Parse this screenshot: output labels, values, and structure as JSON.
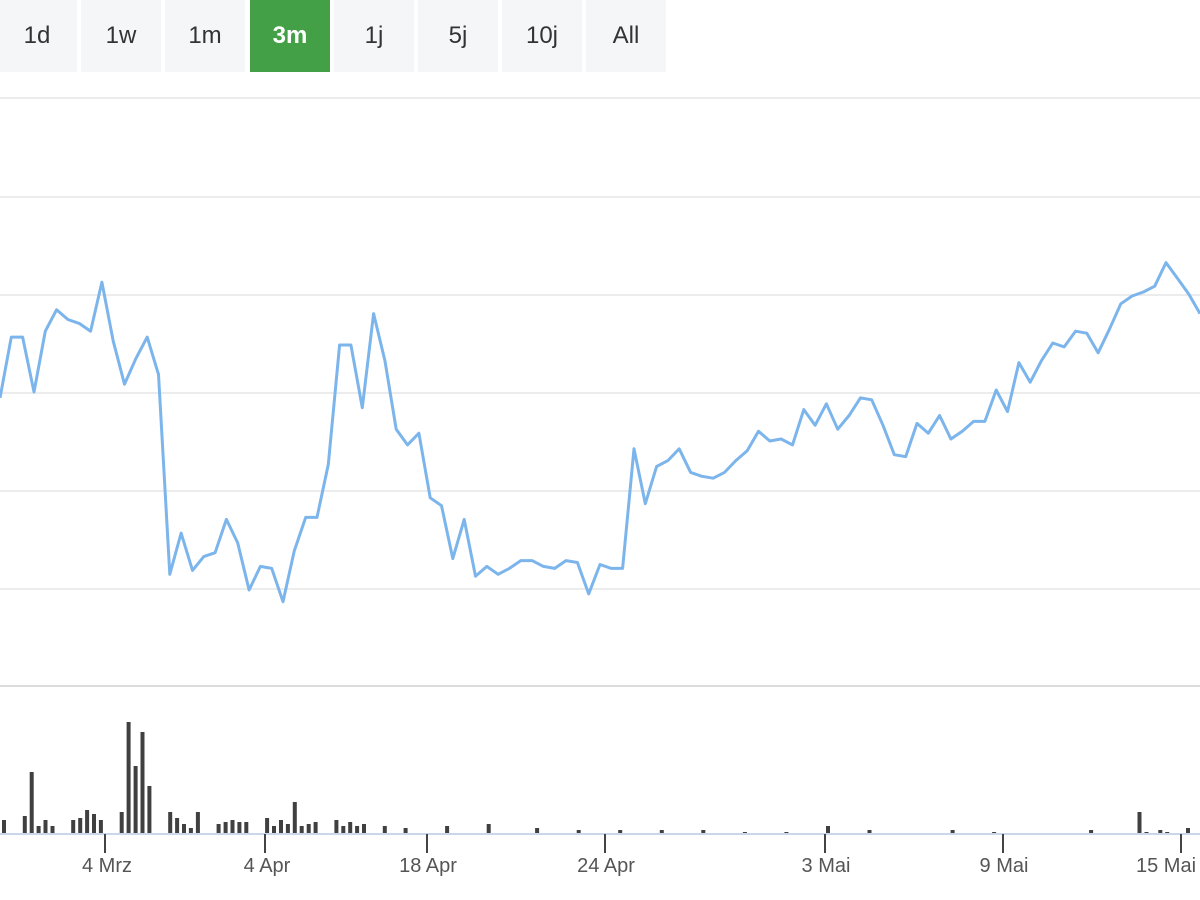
{
  "range_buttons": [
    {
      "label": "1d",
      "active": false
    },
    {
      "label": "1w",
      "active": false
    },
    {
      "label": "1m",
      "active": false
    },
    {
      "label": "3m",
      "active": true
    },
    {
      "label": "1j",
      "active": false
    },
    {
      "label": "5j",
      "active": false
    },
    {
      "label": "10j",
      "active": false
    },
    {
      "label": "All",
      "active": false
    }
  ],
  "colors": {
    "line": "#7cb5ec",
    "volume": "#404040",
    "grid": "#e6e6e6",
    "active_button": "#43a047",
    "button": "#f5f6f7"
  },
  "chart_data": {
    "type": "line",
    "title": "",
    "xlabel": "",
    "ylabel": "",
    "grid": true,
    "y_tick_labels_shown": false,
    "x_tick_labels": [
      "4 Mrz",
      "4 Apr",
      "18 Apr",
      "24 Apr",
      "3 Mai",
      "9 Mai",
      "15 Mai"
    ],
    "ylim": [
      0,
      6
    ],
    "series": [
      {
        "values": [
          2.94,
          3.56,
          3.56,
          3.0,
          3.62,
          3.84,
          3.74,
          3.7,
          3.62,
          4.12,
          3.52,
          3.08,
          3.34,
          3.56,
          3.18,
          1.14,
          1.56,
          1.18,
          1.32,
          1.36,
          1.7,
          1.46,
          0.98,
          1.22,
          1.2,
          0.86,
          1.38,
          1.72,
          1.72,
          2.26,
          3.48,
          3.48,
          2.84,
          3.8,
          3.32,
          2.62,
          2.46,
          2.58,
          1.92,
          1.84,
          1.3,
          1.7,
          1.12,
          1.22,
          1.14,
          1.2,
          1.28,
          1.28,
          1.22,
          1.2,
          1.28,
          1.26,
          0.94,
          1.24,
          1.2,
          1.2,
          2.42,
          1.86,
          2.24,
          2.3,
          2.42,
          2.18,
          2.14,
          2.12,
          2.18,
          2.3,
          2.4,
          2.6,
          2.5,
          2.52,
          2.46,
          2.82,
          2.66,
          2.88,
          2.62,
          2.76,
          2.94,
          2.92,
          2.66,
          2.36,
          2.34,
          2.68,
          2.58,
          2.76,
          2.52,
          2.6,
          2.7,
          2.7,
          3.02,
          2.8,
          3.3,
          3.1,
          3.32,
          3.5,
          3.46,
          3.62,
          3.6,
          3.4,
          3.64,
          3.9,
          3.98,
          4.02,
          4.08,
          4.32,
          4.16,
          4.0,
          3.8
        ],
        "note_values_are_relative": true
      }
    ],
    "volume": {
      "values": [
        0.14,
        0,
        0,
        0.18,
        0.62,
        0.08,
        0.14,
        0.08,
        0,
        0,
        0.14,
        0.16,
        0.24,
        0.2,
        0.14,
        0,
        0,
        0.22,
        1.12,
        0.68,
        1.02,
        0.48,
        0,
        0,
        0.22,
        0.16,
        0.1,
        0.06,
        0.22,
        0,
        0,
        0.1,
        0.12,
        0.14,
        0.12,
        0.12,
        0,
        0,
        0.16,
        0.08,
        0.14,
        0.1,
        0.32,
        0.08,
        0.1,
        0.12,
        0,
        0,
        0.14,
        0.08,
        0.12,
        0.08,
        0.1,
        0,
        0,
        0.08,
        0,
        0,
        0.06,
        0,
        0,
        0,
        0,
        0,
        0.08,
        0,
        0,
        0,
        0,
        0,
        0.1,
        0,
        0,
        0,
        0,
        0,
        0,
        0.06,
        0,
        0,
        0,
        0,
        0,
        0.04,
        0,
        0,
        0,
        0,
        0,
        0.04,
        0,
        0,
        0,
        0,
        0,
        0.04,
        0,
        0,
        0,
        0,
        0,
        0.04,
        0,
        0,
        0,
        0,
        0,
        0.02,
        0,
        0,
        0,
        0,
        0,
        0.02,
        0,
        0,
        0,
        0,
        0,
        0.08,
        0,
        0,
        0,
        0,
        0,
        0.04,
        0,
        0,
        0,
        0,
        0,
        0,
        0,
        0,
        0,
        0,
        0,
        0.04,
        0,
        0,
        0,
        0,
        0,
        0.02,
        0,
        0,
        0,
        0,
        0,
        0,
        0,
        0,
        0,
        0,
        0,
        0,
        0,
        0.04,
        0,
        0,
        0,
        0,
        0,
        0,
        0.22,
        0.02,
        0,
        0.04,
        0.02,
        0,
        0,
        0.06
      ]
    }
  }
}
